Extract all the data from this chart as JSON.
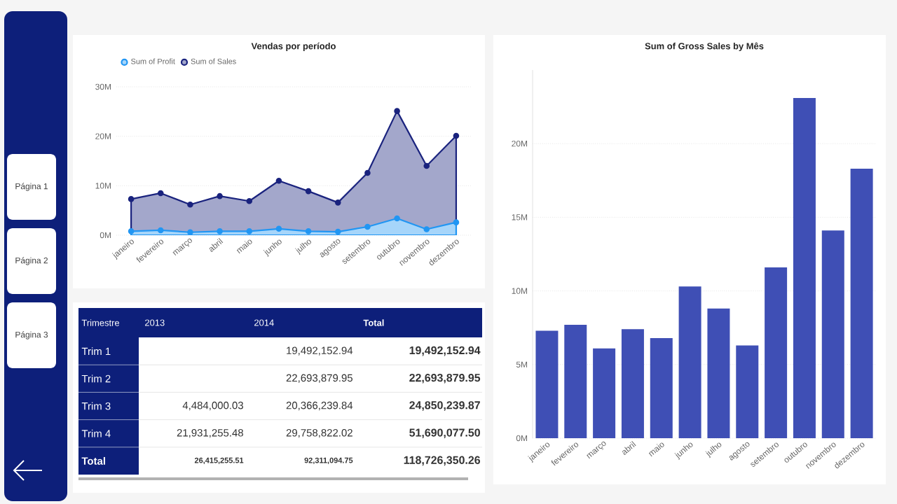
{
  "chart_data": [
    {
      "type": "other",
      "annotations": [
        "Página 1",
        "Página 2",
        "Página 3"
      ]
    },
    {
      "type": "area",
      "title": "Vendas por período",
      "categories": [
        "janeiro",
        "fevereiro",
        "março",
        "abril",
        "maio",
        "junho",
        "julho",
        "agosto",
        "setembro",
        "outubro",
        "novembro",
        "dezembro"
      ],
      "series": [
        {
          "name": "Sum of Profit",
          "color": "#2196f3",
          "values": [
            0.8,
            1.0,
            0.6,
            0.8,
            0.8,
            1.3,
            0.8,
            0.7,
            1.7,
            3.4,
            1.2,
            2.6
          ]
        },
        {
          "name": "Sum of Sales",
          "color": "#1a237e",
          "values": [
            7.3,
            8.5,
            6.2,
            7.9,
            6.9,
            11.0,
            8.9,
            6.6,
            12.6,
            25.1,
            14.0,
            20.1
          ]
        }
      ],
      "ylim": [
        0,
        30
      ],
      "yticks": [
        {
          "value": 0,
          "label": "0M"
        },
        {
          "value": 10,
          "label": "10M"
        },
        {
          "value": 20,
          "label": "20M"
        },
        {
          "value": 30,
          "label": "30M"
        }
      ],
      "grid": "y",
      "legend": "top left",
      "marker": "circle"
    },
    {
      "type": "other",
      "ylabel": "Trimestre",
      "categories": [
        "2013",
        "2014",
        "Total"
      ],
      "y_categories": [
        "Trim 1",
        "Trim 2",
        "Trim 3",
        "Trim 4",
        "Total"
      ],
      "cell_labels": [
        [
          null,
          "19,492,152.94",
          "19,492,152.94"
        ],
        [
          null,
          "22,693,879.95",
          "22,693,879.95"
        ],
        [
          "4,484,000.03",
          "20,366,239.84",
          "24,850,239.87"
        ],
        [
          "21,931,255.48",
          "29,758,822.02",
          "51,690,077.50"
        ],
        [
          "26,415,255.51",
          "92,311,094.75",
          "118,726,350.26"
        ]
      ]
    },
    {
      "type": "bar",
      "title": "Sum of Gross Sales by Mês",
      "categories": [
        "janeiro",
        "fevereiro",
        "março",
        "abril",
        "maio",
        "junho",
        "julho",
        "agosto",
        "setembro",
        "outubro",
        "novembro",
        "dezembro"
      ],
      "values": [
        7.3,
        7.7,
        6.1,
        7.4,
        6.8,
        10.3,
        8.8,
        6.3,
        11.6,
        23.1,
        14.1,
        18.3
      ],
      "color": "#3f4fb5",
      "ylim": [
        0,
        25
      ],
      "yticks": [
        {
          "value": 0,
          "label": "0M"
        },
        {
          "value": 5,
          "label": "5M"
        },
        {
          "value": 10,
          "label": "10M"
        },
        {
          "value": 15,
          "label": "15M"
        },
        {
          "value": 20,
          "label": "20M"
        }
      ],
      "grid": "y"
    }
  ]
}
